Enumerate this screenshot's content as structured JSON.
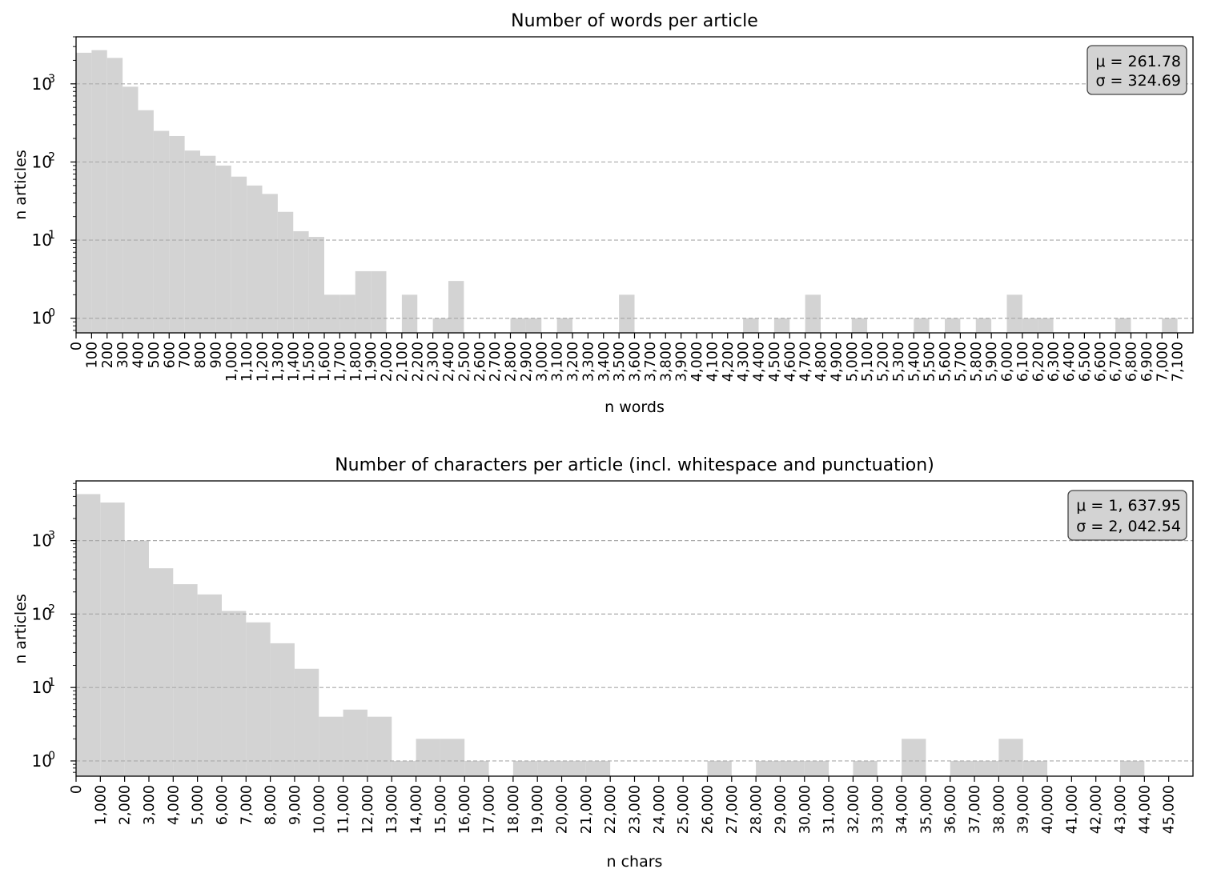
{
  "chart_data": [
    {
      "type": "bar",
      "title": "Number of words per article",
      "xlabel": "n words",
      "ylabel": "n articles",
      "y_scale": "log",
      "ylim": [
        0.65,
        4000
      ],
      "xlim": [
        0,
        7200
      ],
      "bin_width": 100,
      "bar_color": "#d3d3d3",
      "grid": "y dashed",
      "xticks": [
        "0",
        "100",
        "200",
        "300",
        "400",
        "500",
        "600",
        "700",
        "800",
        "900",
        "1,000",
        "1,100",
        "1,200",
        "1,300",
        "1,400",
        "1,500",
        "1,600",
        "1,700",
        "1,800",
        "1,900",
        "2,000",
        "2,100",
        "2,200",
        "2,300",
        "2,400",
        "2,500",
        "2,600",
        "2,700",
        "2,800",
        "2,900",
        "3,000",
        "3,100",
        "3,200",
        "3,300",
        "3,400",
        "3,500",
        "3,600",
        "3,700",
        "3,800",
        "3,900",
        "4,000",
        "4,100",
        "4,200",
        "4,300",
        "4,400",
        "4,500",
        "4,600",
        "4,700",
        "4,800",
        "4,900",
        "5,000",
        "5,100",
        "5,200",
        "5,300",
        "5,400",
        "5,500",
        "5,600",
        "5,700",
        "5,800",
        "5,900",
        "6,000",
        "6,100",
        "6,200",
        "6,300",
        "6,400",
        "6,500",
        "6,600",
        "6,700",
        "6,800",
        "6,900",
        "7,000",
        "7,100"
      ],
      "yticks": [
        {
          "base": "10",
          "exp": "0",
          "value": 1
        },
        {
          "base": "10",
          "exp": "1",
          "value": 10
        },
        {
          "base": "10",
          "exp": "2",
          "value": 100
        },
        {
          "base": "10",
          "exp": "3",
          "value": 1000
        }
      ],
      "stats": [
        "μ = 261.78",
        "σ = 324.69"
      ],
      "stats_placement": "top-right",
      "bins": [
        {
          "x0": 0,
          "x1": 100,
          "count": 2500
        },
        {
          "x0": 100,
          "x1": 200,
          "count": 2700
        },
        {
          "x0": 200,
          "x1": 300,
          "count": 2150
        },
        {
          "x0": 300,
          "x1": 400,
          "count": 920
        },
        {
          "x0": 400,
          "x1": 500,
          "count": 460
        },
        {
          "x0": 500,
          "x1": 600,
          "count": 250
        },
        {
          "x0": 600,
          "x1": 700,
          "count": 215
        },
        {
          "x0": 700,
          "x1": 800,
          "count": 140
        },
        {
          "x0": 800,
          "x1": 900,
          "count": 120
        },
        {
          "x0": 900,
          "x1": 1000,
          "count": 90
        },
        {
          "x0": 1000,
          "x1": 1100,
          "count": 65
        },
        {
          "x0": 1100,
          "x1": 1200,
          "count": 50
        },
        {
          "x0": 1200,
          "x1": 1300,
          "count": 39
        },
        {
          "x0": 1300,
          "x1": 1400,
          "count": 23
        },
        {
          "x0": 1400,
          "x1": 1500,
          "count": 13
        },
        {
          "x0": 1500,
          "x1": 1600,
          "count": 11
        },
        {
          "x0": 1600,
          "x1": 1700,
          "count": 2
        },
        {
          "x0": 1700,
          "x1": 1800,
          "count": 2
        },
        {
          "x0": 1800,
          "x1": 1900,
          "count": 4
        },
        {
          "x0": 1900,
          "x1": 2000,
          "count": 4
        },
        {
          "x0": 2100,
          "x1": 2200,
          "count": 2
        },
        {
          "x0": 2300,
          "x1": 2400,
          "count": 1
        },
        {
          "x0": 2400,
          "x1": 2500,
          "count": 3
        },
        {
          "x0": 2800,
          "x1": 2900,
          "count": 1
        },
        {
          "x0": 2900,
          "x1": 3000,
          "count": 1
        },
        {
          "x0": 3100,
          "x1": 3200,
          "count": 1
        },
        {
          "x0": 3500,
          "x1": 3600,
          "count": 2
        },
        {
          "x0": 4300,
          "x1": 4400,
          "count": 1
        },
        {
          "x0": 4500,
          "x1": 4600,
          "count": 1
        },
        {
          "x0": 4700,
          "x1": 4800,
          "count": 2
        },
        {
          "x0": 5000,
          "x1": 5100,
          "count": 1
        },
        {
          "x0": 5400,
          "x1": 5500,
          "count": 1
        },
        {
          "x0": 5600,
          "x1": 5700,
          "count": 1
        },
        {
          "x0": 5800,
          "x1": 5900,
          "count": 1
        },
        {
          "x0": 6000,
          "x1": 6100,
          "count": 2
        },
        {
          "x0": 6100,
          "x1": 6200,
          "count": 1
        },
        {
          "x0": 6200,
          "x1": 6300,
          "count": 1
        },
        {
          "x0": 6700,
          "x1": 6800,
          "count": 1
        },
        {
          "x0": 7000,
          "x1": 7100,
          "count": 1
        }
      ]
    },
    {
      "type": "bar",
      "title": "Number of characters per article (incl. whitespace and punctuation)",
      "xlabel": "n chars",
      "ylabel": "n articles",
      "y_scale": "log",
      "ylim": [
        0.62,
        6500
      ],
      "xlim": [
        0,
        46000
      ],
      "bin_width": 1000,
      "bar_color": "#d3d3d3",
      "grid": "y dashed",
      "xticks": [
        "0",
        "1,000",
        "2,000",
        "3,000",
        "4,000",
        "5,000",
        "6,000",
        "7,000",
        "8,000",
        "9,000",
        "10,000",
        "11,000",
        "12,000",
        "13,000",
        "14,000",
        "15,000",
        "16,000",
        "17,000",
        "18,000",
        "19,000",
        "20,000",
        "21,000",
        "22,000",
        "23,000",
        "24,000",
        "25,000",
        "26,000",
        "27,000",
        "28,000",
        "29,000",
        "30,000",
        "31,000",
        "32,000",
        "33,000",
        "34,000",
        "35,000",
        "36,000",
        "37,000",
        "38,000",
        "39,000",
        "40,000",
        "41,000",
        "42,000",
        "43,000",
        "44,000",
        "45,000"
      ],
      "yticks": [
        {
          "base": "10",
          "exp": "0",
          "value": 1
        },
        {
          "base": "10",
          "exp": "1",
          "value": 10
        },
        {
          "base": "10",
          "exp": "2",
          "value": 100
        },
        {
          "base": "10",
          "exp": "3",
          "value": 1000
        }
      ],
      "stats": [
        "μ = 1, 637.95",
        "σ = 2, 042.54"
      ],
      "stats_placement": "top-right",
      "bins": [
        {
          "x0": 0,
          "x1": 1000,
          "count": 4300
        },
        {
          "x0": 1000,
          "x1": 2000,
          "count": 3300
        },
        {
          "x0": 2000,
          "x1": 3000,
          "count": 1000
        },
        {
          "x0": 3000,
          "x1": 4000,
          "count": 420
        },
        {
          "x0": 4000,
          "x1": 5000,
          "count": 255
        },
        {
          "x0": 5000,
          "x1": 6000,
          "count": 185
        },
        {
          "x0": 6000,
          "x1": 7000,
          "count": 110
        },
        {
          "x0": 7000,
          "x1": 8000,
          "count": 77
        },
        {
          "x0": 8000,
          "x1": 9000,
          "count": 40
        },
        {
          "x0": 9000,
          "x1": 10000,
          "count": 18
        },
        {
          "x0": 10000,
          "x1": 11000,
          "count": 4
        },
        {
          "x0": 11000,
          "x1": 12000,
          "count": 5
        },
        {
          "x0": 12000,
          "x1": 13000,
          "count": 4
        },
        {
          "x0": 13000,
          "x1": 14000,
          "count": 1
        },
        {
          "x0": 14000,
          "x1": 15000,
          "count": 2
        },
        {
          "x0": 15000,
          "x1": 16000,
          "count": 2
        },
        {
          "x0": 16000,
          "x1": 17000,
          "count": 1
        },
        {
          "x0": 18000,
          "x1": 19000,
          "count": 1
        },
        {
          "x0": 19000,
          "x1": 20000,
          "count": 1
        },
        {
          "x0": 20000,
          "x1": 21000,
          "count": 1
        },
        {
          "x0": 21000,
          "x1": 22000,
          "count": 1
        },
        {
          "x0": 26000,
          "x1": 27000,
          "count": 1
        },
        {
          "x0": 28000,
          "x1": 29000,
          "count": 1
        },
        {
          "x0": 29000,
          "x1": 30000,
          "count": 1
        },
        {
          "x0": 30000,
          "x1": 31000,
          "count": 1
        },
        {
          "x0": 32000,
          "x1": 33000,
          "count": 1
        },
        {
          "x0": 34000,
          "x1": 35000,
          "count": 2
        },
        {
          "x0": 36000,
          "x1": 37000,
          "count": 1
        },
        {
          "x0": 37000,
          "x1": 38000,
          "count": 1
        },
        {
          "x0": 38000,
          "x1": 39000,
          "count": 2
        },
        {
          "x0": 39000,
          "x1": 40000,
          "count": 1
        },
        {
          "x0": 43000,
          "x1": 44000,
          "count": 1
        }
      ]
    }
  ]
}
